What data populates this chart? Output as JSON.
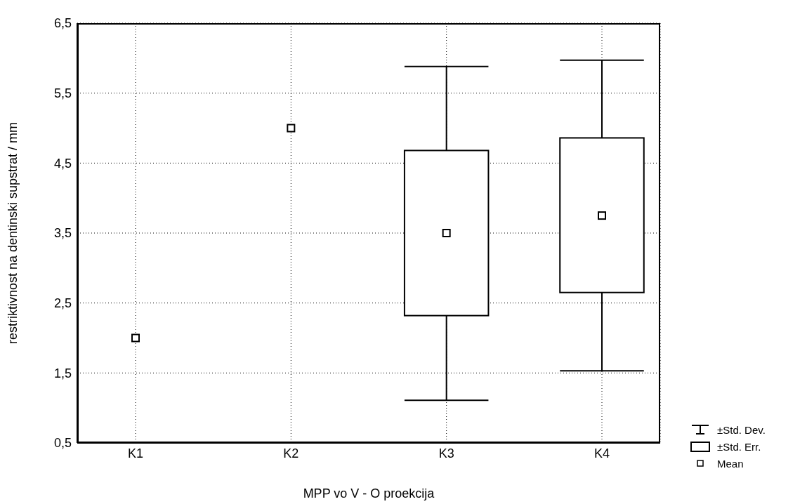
{
  "chart_data": {
    "type": "box",
    "categories": [
      "K1",
      "K2",
      "K3",
      "K4"
    ],
    "boxes": [
      null,
      null,
      {
        "low": 1.11,
        "q1": 2.32,
        "q3": 4.68,
        "high": 5.88,
        "mean": 3.5
      },
      {
        "low": 1.53,
        "q1": 2.65,
        "q3": 4.86,
        "high": 5.97,
        "mean": 3.75
      }
    ],
    "series": [
      {
        "type": "scatter",
        "name": "Mean",
        "color": "#000000",
        "x": [
          "K1",
          "K2"
        ],
        "values": [
          2.0,
          5.0
        ]
      }
    ],
    "color": "#000000",
    "xlabel": "MPP vo V - O proekcija",
    "ylabel": "restriktivnost na dentinski supstrat / mm",
    "ylim": [
      0.5,
      6.5
    ],
    "yticks": [
      {
        "value": 0.5,
        "label": "0,5"
      },
      {
        "value": 1.5,
        "label": "1,5"
      },
      {
        "value": 2.5,
        "label": "2,5"
      },
      {
        "value": 3.5,
        "label": "3,5"
      },
      {
        "value": 4.5,
        "label": "4,5"
      },
      {
        "value": 5.5,
        "label": "5,5"
      },
      {
        "value": 6.5,
        "label": "6,5"
      }
    ],
    "grid": true,
    "marker": "square",
    "legend": "bottom right",
    "annotations": [
      "±Std. Dev.",
      "±Std. Err."
    ]
  }
}
